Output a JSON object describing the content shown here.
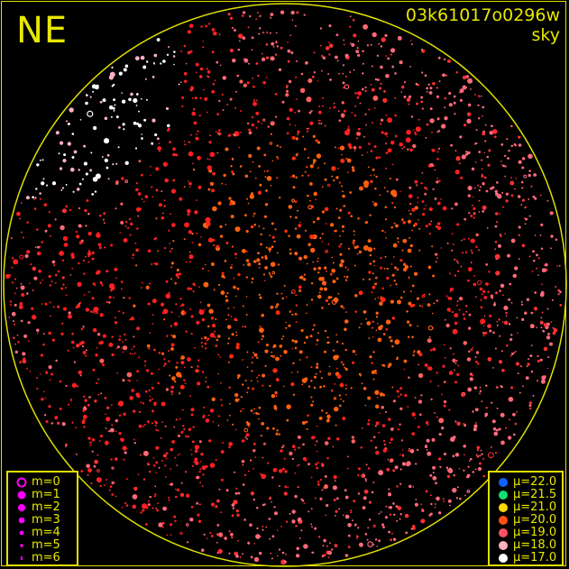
{
  "direction_label": "NE",
  "frame_id": "03k61017o0296w",
  "frame_type": "sky",
  "magnitude_legend": [
    {
      "label": "m=0",
      "size": 0
    },
    {
      "label": "m=1",
      "size": 1
    },
    {
      "label": "m=2",
      "size": 2
    },
    {
      "label": "m=3",
      "size": 3
    },
    {
      "label": "m=4",
      "size": 4
    },
    {
      "label": "m=5",
      "size": 5
    },
    {
      "label": "m=6",
      "size": 6
    }
  ],
  "magnitude_symbol_color": "#ff00ff",
  "brightness_legend": [
    {
      "label": "μ=22.0",
      "color": "#1060ff"
    },
    {
      "label": "μ=21.5",
      "color": "#10e070"
    },
    {
      "label": "μ=21.0",
      "color": "#ffd800"
    },
    {
      "label": "μ=20.0",
      "color": "#ff5010"
    },
    {
      "label": "μ=19.0",
      "color": "#ff5060"
    },
    {
      "label": "μ=18.0",
      "color": "#ffb0c0"
    },
    {
      "label": "μ=17.0",
      "color": "#ffffff"
    }
  ],
  "horizon_color": "#e0e000"
}
